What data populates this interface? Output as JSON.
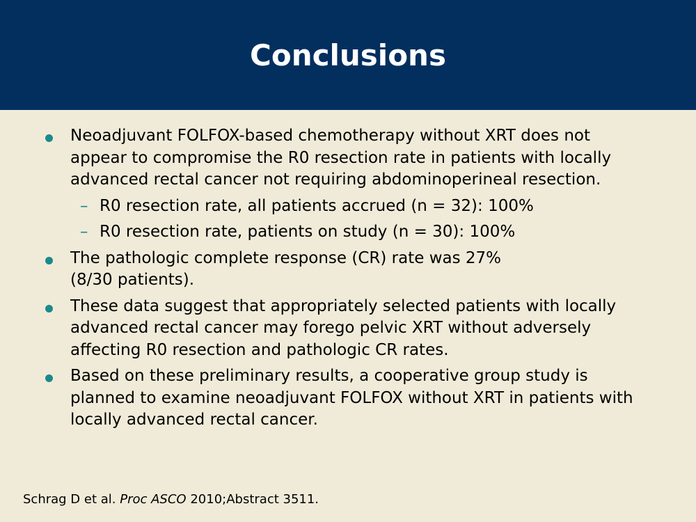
{
  "slide": {
    "title": "Conclusions"
  },
  "bullets": [
    {
      "text": "Neoadjuvant FOLFOX-based chemotherapy without XRT does not appear to compromise the R0 resection rate in patients with locally advanced rectal cancer not requiring abdominoperineal resection.",
      "subitems": [
        "R0 resection rate, all patients accrued (n = 32): 100%",
        "R0 resection rate, patients on study (n = 30): 100%"
      ]
    },
    {
      "text_line1": "The pathologic complete response (CR) rate was 27%",
      "text_line2": "(8/30 patients)."
    },
    {
      "text": "These data suggest that appropriately selected patients with locally advanced rectal cancer may forego pelvic XRT without adversely affecting R0 resection and pathologic CR rates."
    },
    {
      "text": "Based on these preliminary results, a cooperative group study is planned to examine neoadjuvant FOLFOX without XRT in patients with locally advanced rectal cancer."
    }
  ],
  "citation": {
    "authors": "Schrag D et al.",
    "journal": "Proc ASCO",
    "details": "2010;Abstract 3511."
  },
  "colors": {
    "header_bg": "#032f5f",
    "page_bg": "#f0ebd9",
    "bullet": "#1a8a8a"
  }
}
